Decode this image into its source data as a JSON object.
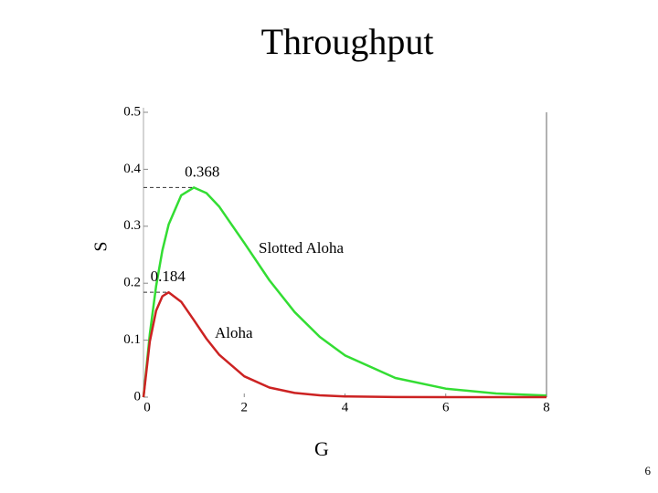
{
  "chart_data": {
    "type": "line",
    "title": "Throughput",
    "x_label": "G",
    "y_label": "S",
    "x": [
      0,
      0.125,
      0.25,
      0.375,
      0.5,
      0.75,
      1,
      1.25,
      1.5,
      2,
      2.5,
      3,
      3.5,
      4,
      5,
      6,
      7,
      8
    ],
    "series": [
      {
        "name": "Slotted Aloha",
        "color": "#33dd33",
        "values": [
          0,
          0.1103,
          0.1947,
          0.2577,
          0.3033,
          0.3543,
          0.3679,
          0.3581,
          0.3347,
          0.2707,
          0.2052,
          0.1494,
          0.1057,
          0.0733,
          0.0337,
          0.0149,
          0.0064,
          0.0027
        ]
      },
      {
        "name": "Aloha",
        "color": "#cc2222",
        "values": [
          0,
          0.0974,
          0.1516,
          0.1771,
          0.1839,
          0.1673,
          0.1353,
          0.1026,
          0.0747,
          0.0366,
          0.0168,
          0.0074,
          0.0032,
          0.0013,
          0.0002,
          0,
          0,
          0
        ]
      }
    ],
    "annotations": [
      {
        "label": "0.368",
        "x": 1,
        "y": 0.368
      },
      {
        "label": "0.184",
        "x": 0.5,
        "y": 0.184
      }
    ],
    "xlim": [
      0,
      8
    ],
    "xticks": [
      0,
      2,
      4,
      6,
      8
    ],
    "ylim": [
      0,
      0.5
    ],
    "yticks": [
      0,
      0.1,
      0.2,
      0.3,
      0.4,
      0.5
    ]
  },
  "slide_number": "6"
}
